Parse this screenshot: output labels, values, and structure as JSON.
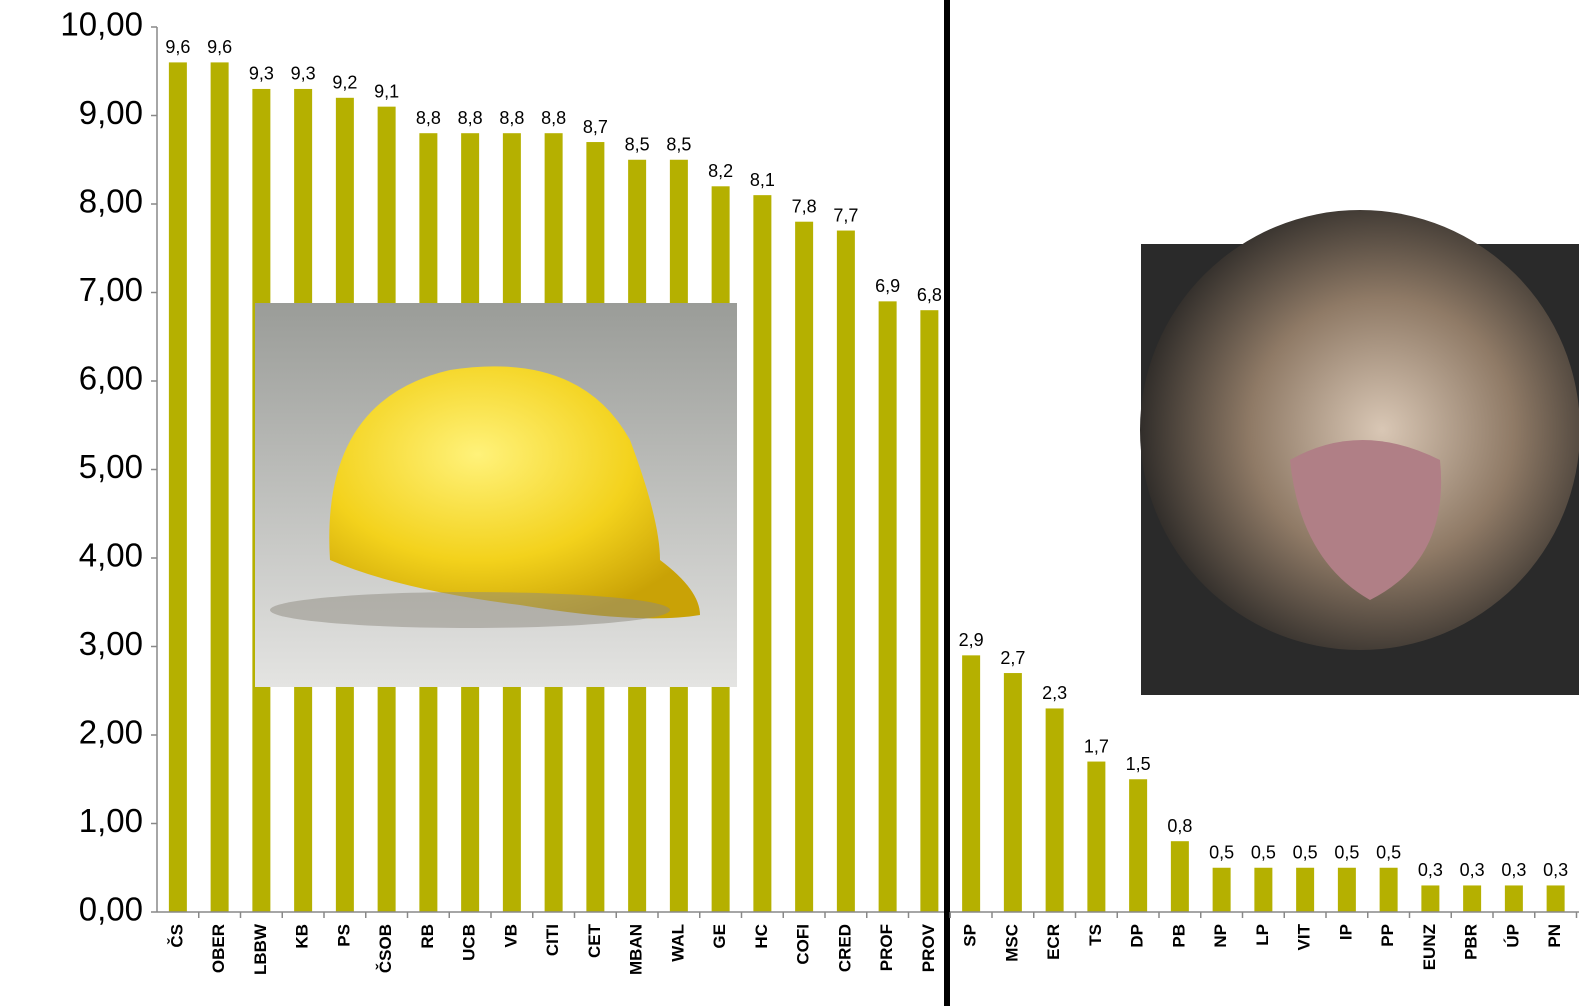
{
  "chart_data": {
    "type": "bar",
    "categories": [
      "ČS",
      "OBER",
      "LBBW",
      "KB",
      "PS",
      "ČSOB",
      "RB",
      "UCB",
      "VB",
      "CITI",
      "CET",
      "MBAN",
      "WAL",
      "GE",
      "HC",
      "COFI",
      "CRED",
      "PROF",
      "PROV",
      "SP",
      "MSC",
      "ECR",
      "TS",
      "DP",
      "PB",
      "NP",
      "LP",
      "VIT",
      "IP",
      "PP",
      "EUNZ",
      "PBR",
      "ÚP",
      "PN"
    ],
    "values": [
      9.6,
      9.6,
      9.3,
      9.3,
      9.2,
      9.1,
      8.8,
      8.8,
      8.8,
      8.8,
      8.7,
      8.5,
      8.5,
      8.2,
      8.1,
      7.8,
      7.7,
      6.9,
      6.8,
      2.9,
      2.7,
      2.3,
      1.7,
      1.5,
      0.8,
      0.5,
      0.5,
      0.5,
      0.5,
      0.5,
      0.3,
      0.3,
      0.3,
      0.3
    ],
    "value_labels": [
      "9,6",
      "9,6",
      "9,3",
      "9,3",
      "9,2",
      "9,1",
      "8,8",
      "8,8",
      "8,8",
      "8,8",
      "8,7",
      "8,5",
      "8,5",
      "8,2",
      "8,1",
      "7,8",
      "7,7",
      "6,9",
      "6,8",
      "2,9",
      "2,7",
      "2,3",
      "1,7",
      "1,5",
      "0,8",
      "0,5",
      "0,5",
      "0,5",
      "0,5",
      "0,5",
      "0,3",
      "0,3",
      "0,3",
      "0,3"
    ],
    "color": "#b5b000",
    "ylim": [
      0,
      10
    ],
    "yticks": [
      {
        "value": 0,
        "label": "0,00"
      },
      {
        "value": 1,
        "label": "1,00"
      },
      {
        "value": 2,
        "label": "2,00"
      },
      {
        "value": 3,
        "label": "3,00"
      },
      {
        "value": 4,
        "label": "4,00"
      },
      {
        "value": 5,
        "label": "5,00"
      },
      {
        "value": 6,
        "label": "6,00"
      },
      {
        "value": 7,
        "label": "7,00"
      },
      {
        "value": 8,
        "label": "8,00"
      },
      {
        "value": 9,
        "label": "9,00"
      },
      {
        "value": 10,
        "label": "10,00"
      }
    ],
    "grid": false
  }
}
